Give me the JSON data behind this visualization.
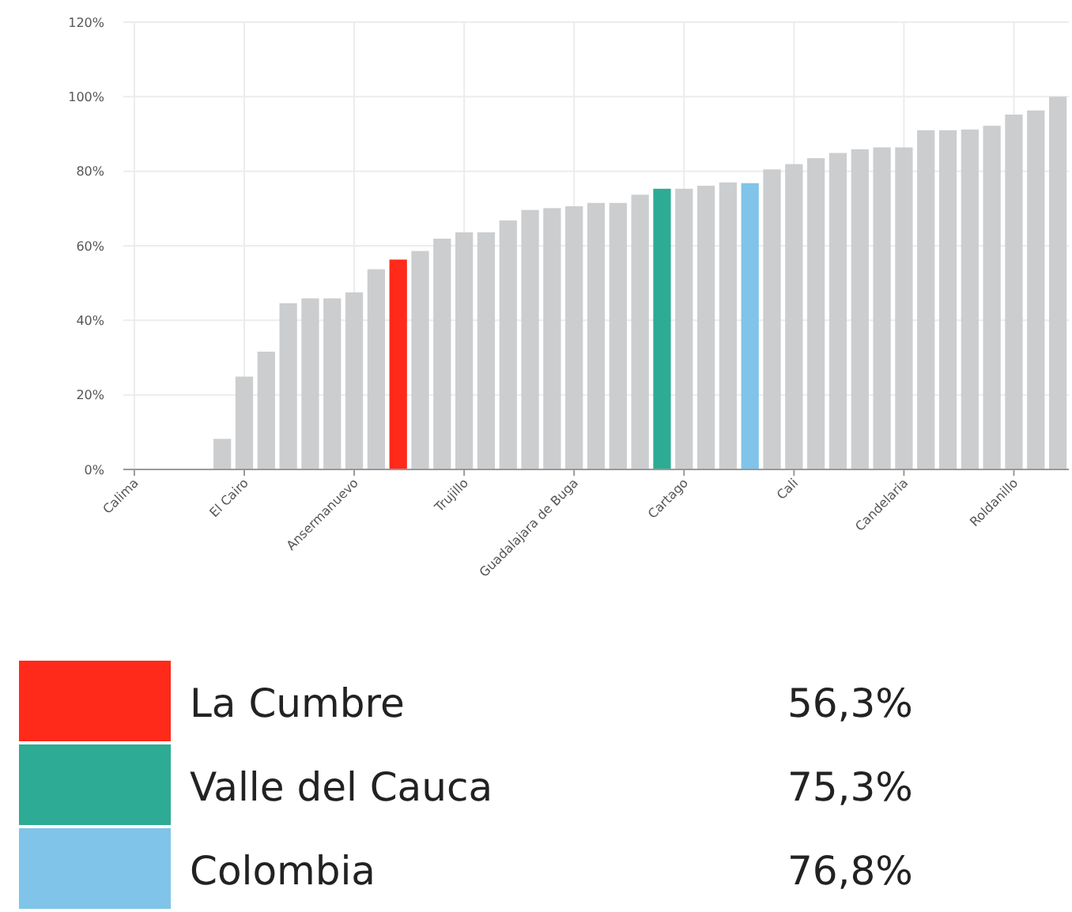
{
  "chart_data": {
    "type": "bar",
    "stacked": true,
    "grid": true,
    "legend": "bottom",
    "ylim": [
      0,
      120
    ],
    "yticks": [
      {
        "value": 0,
        "label": "0%"
      },
      {
        "value": 20,
        "label": "20%"
      },
      {
        "value": 40,
        "label": "40%"
      },
      {
        "value": 60,
        "label": "60%"
      },
      {
        "value": 80,
        "label": "80%"
      },
      {
        "value": 100,
        "label": "100%"
      },
      {
        "value": 120,
        "label": "120%"
      }
    ],
    "categories": [
      "Calima",
      null,
      null,
      null,
      null,
      "El Cairo",
      null,
      null,
      null,
      null,
      "Ansermanuevo",
      null,
      null,
      null,
      null,
      "Trujillo",
      null,
      null,
      null,
      null,
      "Guadalajara de Buga",
      null,
      null,
      null,
      null,
      "Cartago",
      null,
      null,
      null,
      null,
      "Cali",
      null,
      null,
      null,
      null,
      "Candelaria",
      null,
      null,
      null,
      null,
      "Roldanillo",
      null,
      null
    ],
    "series": [
      {
        "color": "#cbcdcf",
        "values": [
          0,
          0,
          0,
          0,
          8.2,
          24.9,
          31.6,
          44.6,
          45.9,
          45.9,
          47.5,
          53.7,
          null,
          58.6,
          61.9,
          63.6,
          63.6,
          66.8,
          69.6,
          70.1,
          70.6,
          71.5,
          71.5,
          73.7,
          null,
          75.3,
          76.1,
          77,
          null,
          80.5,
          81.9,
          83.5,
          84.9,
          85.9,
          86.4,
          86.4,
          91,
          91,
          91.2,
          92.2,
          95.2,
          96.3,
          100
        ]
      },
      {
        "name": "La Cumbre",
        "color": "#ff2a1a",
        "values": [
          null,
          null,
          null,
          null,
          null,
          null,
          null,
          null,
          null,
          null,
          null,
          null,
          56.3,
          null,
          null,
          null,
          null,
          null,
          null,
          null,
          null,
          null,
          null,
          null,
          null,
          null,
          null,
          null,
          null,
          null,
          null,
          null,
          null,
          null,
          null,
          null,
          null,
          null,
          null,
          null,
          null,
          null,
          null
        ]
      },
      {
        "name": "Valle del Cauca",
        "color": "#2eab94",
        "values": [
          null,
          null,
          null,
          null,
          null,
          null,
          null,
          null,
          null,
          null,
          null,
          null,
          null,
          null,
          null,
          null,
          null,
          null,
          null,
          null,
          null,
          null,
          null,
          null,
          75.3,
          null,
          null,
          null,
          null,
          null,
          null,
          null,
          null,
          null,
          null,
          null,
          null,
          null,
          null,
          null,
          null,
          null,
          null
        ]
      },
      {
        "name": "Colombia",
        "color": "#80c4ea",
        "values": [
          null,
          null,
          null,
          null,
          null,
          null,
          null,
          null,
          null,
          null,
          null,
          null,
          null,
          null,
          null,
          null,
          null,
          null,
          null,
          null,
          null,
          null,
          null,
          null,
          null,
          null,
          null,
          null,
          76.8,
          null,
          null,
          null,
          null,
          null,
          null,
          null,
          null,
          null,
          null,
          null,
          null,
          null,
          null
        ]
      }
    ],
    "annotations": [
      "56,3%",
      "75,3%",
      "76,8%"
    ]
  }
}
